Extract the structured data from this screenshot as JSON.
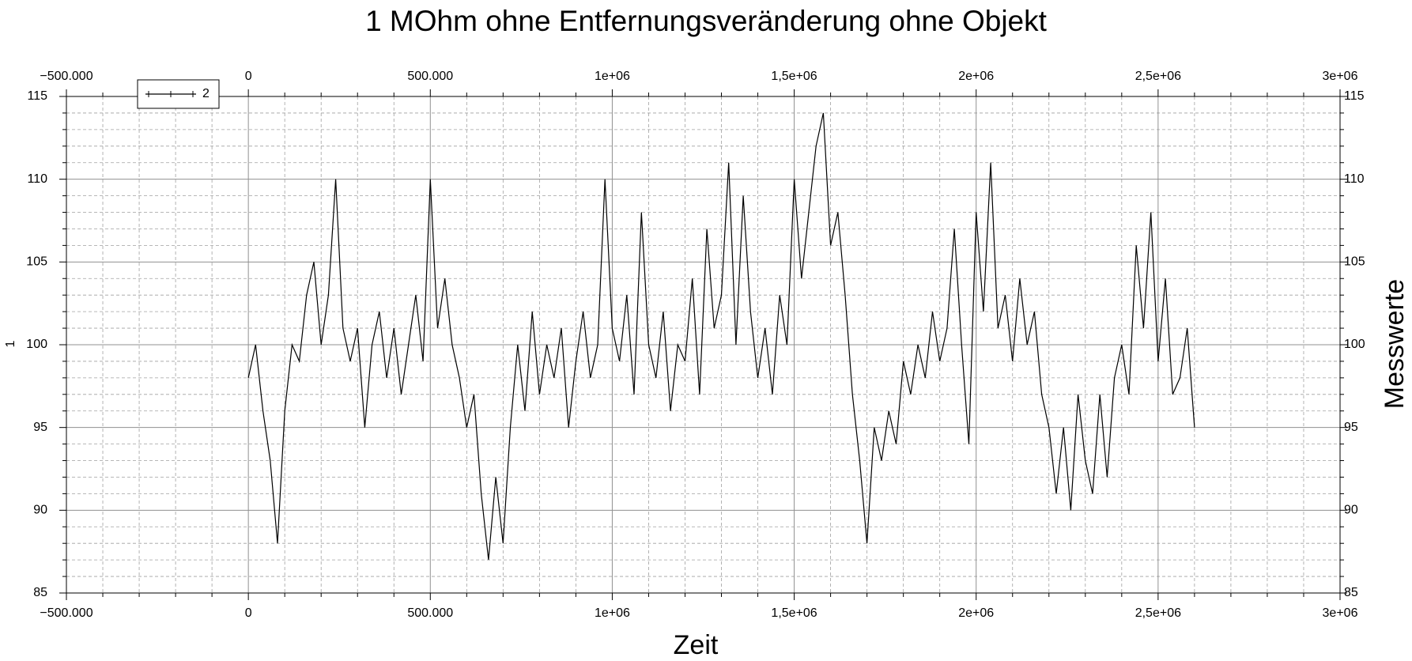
{
  "chart_data": {
    "type": "line",
    "title": "1 MOhm ohne Entfernungsveränderung ohne Objekt",
    "x_label": "Zeit",
    "y_label": "1",
    "y2_label": "Messwerte",
    "xlim": [
      -500000,
      3000000
    ],
    "xticks": [
      {
        "value": -500000,
        "label": "−500.000"
      },
      0,
      {
        "value": 500000,
        "label": "500.000"
      },
      {
        "value": 1000000,
        "label": "1e+06"
      },
      {
        "value": 1500000,
        "label": "1,5e+06"
      },
      {
        "value": 2000000,
        "label": "2e+06"
      },
      {
        "value": 2500000,
        "label": "2,5e+06"
      },
      {
        "value": 3000000,
        "label": "3e+06"
      }
    ],
    "xminorticks": [
      -400000,
      -300000,
      -200000,
      -100000,
      100000,
      200000,
      300000,
      400000,
      600000,
      700000,
      800000,
      900000,
      1100000,
      1200000,
      1300000,
      1400000,
      1600000,
      1700000,
      1800000,
      1900000,
      2100000,
      2200000,
      2300000,
      2400000,
      2600000,
      2700000,
      2800000,
      2900000
    ],
    "ylim": [
      85,
      115
    ],
    "yticks": [
      85,
      90,
      95,
      100,
      105,
      110,
      115
    ],
    "yminorticks": [
      86,
      87,
      88,
      89,
      91,
      92,
      93,
      94,
      96,
      97,
      98,
      99,
      101,
      102,
      103,
      104,
      106,
      107,
      108,
      109,
      111,
      112,
      113,
      114
    ],
    "grid": true,
    "legend": "upper left",
    "x": [
      0,
      20000,
      40000,
      60000,
      80000,
      100000,
      120000,
      140000,
      160000,
      180000,
      200000,
      220000,
      240000,
      260000,
      280000,
      300000,
      320000,
      340000,
      360000,
      380000,
      400000,
      420000,
      440000,
      460000,
      480000,
      500000,
      520000,
      540000,
      560000,
      580000,
      600000,
      620000,
      640000,
      660000,
      680000,
      700000,
      720000,
      740000,
      760000,
      780000,
      800000,
      820000,
      840000,
      860000,
      880000,
      900000,
      920000,
      940000,
      960000,
      980000,
      1000000,
      1020000,
      1040000,
      1060000,
      1080000,
      1100000,
      1120000,
      1140000,
      1160000,
      1180000,
      1200000,
      1220000,
      1240000,
      1260000,
      1280000,
      1300000,
      1320000,
      1340000,
      1360000,
      1380000,
      1400000,
      1420000,
      1440000,
      1460000,
      1480000,
      1500000,
      1520000,
      1540000,
      1560000,
      1580000,
      1600000,
      1620000,
      1640000,
      1660000,
      1680000,
      1700000,
      1720000,
      1740000,
      1760000,
      1780000,
      1800000,
      1820000,
      1840000,
      1860000,
      1880000,
      1900000,
      1920000,
      1940000,
      1960000,
      1980000,
      2000000,
      2020000,
      2040000,
      2060000,
      2080000,
      2100000,
      2120000,
      2140000,
      2160000,
      2180000,
      2200000,
      2220000,
      2240000,
      2260000,
      2280000,
      2300000,
      2320000,
      2340000,
      2360000,
      2380000,
      2400000,
      2420000,
      2440000,
      2460000,
      2480000,
      2500000,
      2520000,
      2540000,
      2560000,
      2580000,
      2600000
    ],
    "series": [
      {
        "name": "2",
        "color": "#000000",
        "values": [
          98,
          100,
          96,
          93,
          88,
          96,
          100,
          99,
          103,
          105,
          100,
          103,
          110,
          101,
          99,
          101,
          95,
          100,
          102,
          98,
          101,
          97,
          100,
          103,
          99,
          110,
          101,
          104,
          100,
          98,
          95,
          97,
          91,
          87,
          92,
          88,
          95,
          100,
          96,
          102,
          97,
          100,
          98,
          101,
          95,
          99,
          102,
          98,
          100,
          110,
          101,
          99,
          103,
          97,
          108,
          100,
          98,
          102,
          96,
          100,
          99,
          104,
          97,
          107,
          101,
          103,
          111,
          100,
          109,
          102,
          98,
          101,
          97,
          103,
          100,
          110,
          104,
          108,
          112,
          114,
          106,
          108,
          103,
          97,
          93,
          88,
          95,
          93,
          96,
          94,
          99,
          97,
          100,
          98,
          102,
          99,
          101,
          107,
          100,
          94,
          108,
          102,
          111,
          101,
          103,
          99,
          104,
          100,
          102,
          97,
          95,
          91,
          95,
          90,
          97,
          93,
          91,
          97,
          92,
          98,
          100,
          97,
          106,
          101,
          108,
          99,
          104,
          97,
          98,
          101,
          95
        ]
      }
    ]
  }
}
